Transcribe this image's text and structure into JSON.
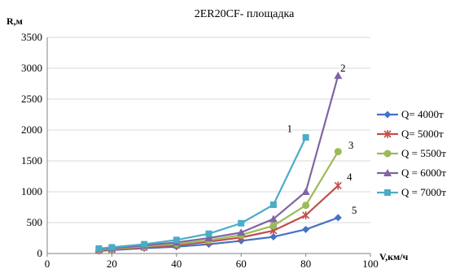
{
  "chart_data": {
    "type": "line",
    "title": "2ER20CF- площадка",
    "xlabel": "V,км/ч",
    "ylabel": "R,м",
    "xlim": [
      0,
      100
    ],
    "ylim": [
      0,
      3500
    ],
    "xticks": [
      "0",
      "20",
      "40",
      "60",
      "80",
      "100"
    ],
    "yticks": [
      "0",
      "500",
      "1000",
      "1500",
      "2000",
      "2500",
      "3000",
      "3500"
    ],
    "grid": "horizontal",
    "legend_position": "right",
    "series": [
      {
        "name": "Q= 4000т",
        "color": "#4472C4",
        "marker": "diamond",
        "x": [
          16,
          20,
          30,
          40,
          50,
          60,
          70,
          80,
          90
        ],
        "y": [
          40,
          55,
          85,
          110,
          150,
          205,
          270,
          390,
          580
        ]
      },
      {
        "name": "Q= 5000т",
        "color": "#C0504D",
        "marker": "star",
        "x": [
          16,
          20,
          30,
          40,
          50,
          60,
          70,
          80,
          90
        ],
        "y": [
          50,
          65,
          100,
          135,
          190,
          260,
          370,
          620,
          1100
        ]
      },
      {
        "name": "Q = 5500т",
        "color": "#9BBB59",
        "marker": "circle",
        "x": [
          16,
          20,
          30,
          40,
          50,
          60,
          70,
          80,
          90
        ],
        "y": [
          60,
          75,
          115,
          155,
          215,
          300,
          450,
          780,
          1650
        ]
      },
      {
        "name": "Q = 6000т",
        "color": "#8064A2",
        "marker": "triangle",
        "x": [
          16,
          20,
          30,
          40,
          50,
          60,
          70,
          80,
          90
        ],
        "y": [
          70,
          85,
          130,
          180,
          250,
          340,
          560,
          1000,
          2880
        ]
      },
      {
        "name": "Q = 7000т",
        "color": "#4BACC6",
        "marker": "square",
        "x": [
          16,
          20,
          30,
          40,
          50,
          60,
          70,
          80
        ],
        "y": [
          80,
          100,
          150,
          220,
          320,
          490,
          790,
          1880
        ]
      }
    ],
    "annotations": [
      {
        "text": "1",
        "x": 75,
        "y": 2020
      },
      {
        "text": "2",
        "x": 91.5,
        "y": 3000
      },
      {
        "text": "3",
        "x": 94,
        "y": 1750
      },
      {
        "text": "4",
        "x": 93.5,
        "y": 1240
      },
      {
        "text": "5",
        "x": 95,
        "y": 700
      }
    ]
  }
}
